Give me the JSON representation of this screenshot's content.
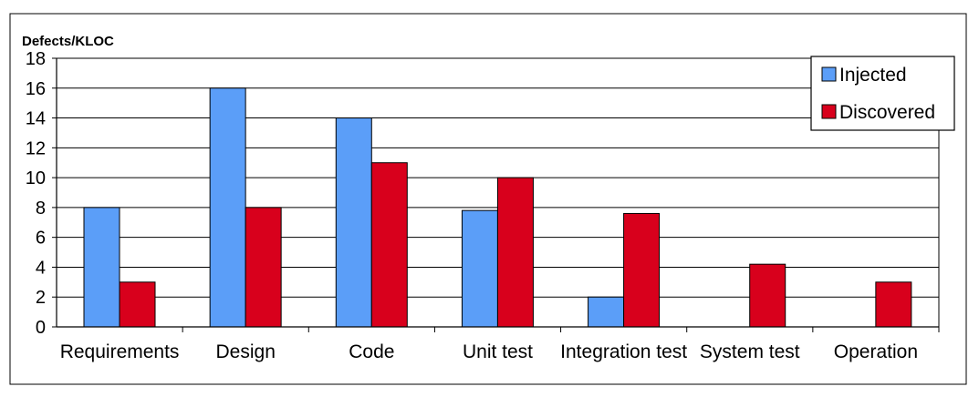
{
  "chart_data": {
    "type": "bar",
    "title": "",
    "xlabel": "",
    "ylabel": "Defects/KLOC",
    "ylim": [
      0,
      18
    ],
    "yticks": [
      0,
      2,
      4,
      6,
      8,
      10,
      12,
      14,
      16,
      18
    ],
    "grid": true,
    "legend_position": "top-right",
    "categories": [
      "Requirements",
      "Design",
      "Code",
      "Unit test",
      "Integration test",
      "System test",
      "Operation"
    ],
    "series": [
      {
        "name": "Injected",
        "color": "#5b9ef8",
        "values": [
          8,
          16,
          14,
          7.8,
          2,
          null,
          null
        ]
      },
      {
        "name": "Discovered",
        "color": "#d8001c",
        "values": [
          3,
          8,
          11,
          10,
          7.6,
          4.2,
          3
        ]
      }
    ]
  }
}
